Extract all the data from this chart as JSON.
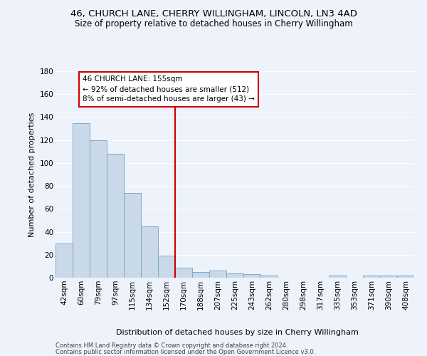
{
  "title": "46, CHURCH LANE, CHERRY WILLINGHAM, LINCOLN, LN3 4AD",
  "subtitle": "Size of property relative to detached houses in Cherry Willingham",
  "xlabel_dist": "Distribution of detached houses by size in Cherry Willingham",
  "ylabel": "Number of detached properties",
  "footer1": "Contains HM Land Registry data © Crown copyright and database right 2024.",
  "footer2": "Contains public sector information licensed under the Open Government Licence v3.0.",
  "categories": [
    "42sqm",
    "60sqm",
    "79sqm",
    "97sqm",
    "115sqm",
    "134sqm",
    "152sqm",
    "170sqm",
    "188sqm",
    "207sqm",
    "225sqm",
    "243sqm",
    "262sqm",
    "280sqm",
    "298sqm",
    "317sqm",
    "335sqm",
    "353sqm",
    "371sqm",
    "390sqm",
    "408sqm"
  ],
  "values": [
    30,
    135,
    120,
    108,
    74,
    45,
    19,
    9,
    5,
    6,
    4,
    3,
    2,
    0,
    0,
    0,
    2,
    0,
    2,
    2,
    2
  ],
  "bar_color": "#c9d9ea",
  "bar_edge_color": "#7aaac8",
  "vline_x": 6.5,
  "vline_color": "#cc0000",
  "annotation_line1": "46 CHURCH LANE: 155sqm",
  "annotation_line2": "← 92% of detached houses are smaller (512)",
  "annotation_line3": "8% of semi-detached houses are larger (43) →",
  "annotation_box_color": "#ffffff",
  "annotation_box_edge": "#cc0000",
  "ylim": [
    0,
    180
  ],
  "yticks": [
    0,
    20,
    40,
    60,
    80,
    100,
    120,
    140,
    160,
    180
  ],
  "bg_color": "#eef2fb",
  "grid_color": "#ffffff",
  "title_fontsize": 9.5,
  "subtitle_fontsize": 8.5,
  "ylabel_fontsize": 8,
  "tick_fontsize": 7.5,
  "annot_fontsize": 7.5,
  "xlabel_fontsize": 8,
  "footer_fontsize": 6
}
